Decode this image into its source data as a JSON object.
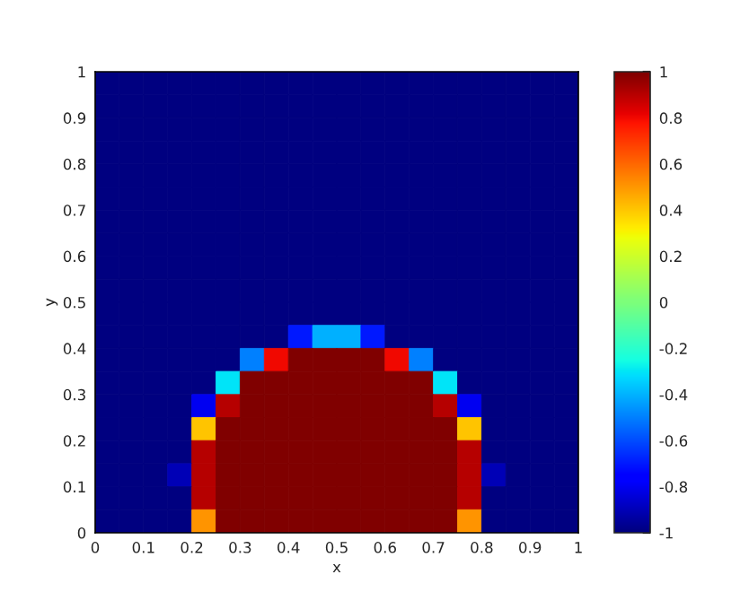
{
  "chart_data": {
    "type": "heatmap",
    "xlabel": "x",
    "ylabel": "y",
    "x": [
      0.025,
      0.075,
      0.125,
      0.175,
      0.225,
      0.275,
      0.325,
      0.375,
      0.425,
      0.475,
      0.525,
      0.575,
      0.625,
      0.675,
      0.725,
      0.775,
      0.825,
      0.875,
      0.925,
      0.975
    ],
    "y": [
      0.975,
      0.925,
      0.875,
      0.825,
      0.775,
      0.725,
      0.675,
      0.625,
      0.575,
      0.525,
      0.475,
      0.425,
      0.375,
      0.325,
      0.275,
      0.225,
      0.175,
      0.125,
      0.075,
      0.025
    ],
    "xlim": [
      0,
      1
    ],
    "xticks": [
      0,
      0.1,
      0.2,
      0.3,
      0.4,
      0.5,
      0.6,
      0.7,
      0.8,
      0.9,
      1
    ],
    "ylim": [
      0,
      1
    ],
    "yticks": [
      0,
      0.1,
      0.2,
      0.3,
      0.4,
      0.5,
      0.6,
      0.7,
      0.8,
      0.9,
      1
    ],
    "clim": [
      -1,
      1
    ],
    "cticks": [
      -1,
      -0.8,
      -0.6,
      -0.4,
      -0.2,
      0,
      0.2,
      0.4,
      0.6,
      0.8,
      1
    ],
    "cells": [
      [
        -1,
        -1,
        -1,
        -1,
        -1,
        -1,
        -1,
        -1,
        -1,
        -1,
        -1,
        -1,
        -1,
        -1,
        -1,
        -1,
        -1,
        -1,
        -1,
        -1
      ],
      [
        -1,
        -1,
        -1,
        -1,
        -1,
        -1,
        -1,
        -1,
        -1,
        -1,
        -1,
        -1,
        -1,
        -1,
        -1,
        -1,
        -1,
        -1,
        -1,
        -1
      ],
      [
        -1,
        -1,
        -1,
        -1,
        -1,
        -1,
        -1,
        -1,
        -1,
        -1,
        -1,
        -1,
        -1,
        -1,
        -1,
        -1,
        -1,
        -1,
        -1,
        -1
      ],
      [
        -1,
        -1,
        -1,
        -1,
        -1,
        -1,
        -1,
        -1,
        -1,
        -1,
        -1,
        -1,
        -1,
        -1,
        -1,
        -1,
        -1,
        -1,
        -1,
        -1
      ],
      [
        -1,
        -1,
        -1,
        -1,
        -1,
        -1,
        -1,
        -1,
        -1,
        -1,
        -1,
        -1,
        -1,
        -1,
        -1,
        -1,
        -1,
        -1,
        -1,
        -1
      ],
      [
        -1,
        -1,
        -1,
        -1,
        -1,
        -1,
        -1,
        -1,
        -1,
        -1,
        -1,
        -1,
        -1,
        -1,
        -1,
        -1,
        -1,
        -1,
        -1,
        -1
      ],
      [
        -1,
        -1,
        -1,
        -1,
        -1,
        -1,
        -1,
        -1,
        -1,
        -1,
        -1,
        -1,
        -1,
        -1,
        -1,
        -1,
        -1,
        -1,
        -1,
        -1
      ],
      [
        -1,
        -1,
        -1,
        -1,
        -1,
        -1,
        -1,
        -1,
        -1,
        -1,
        -1,
        -1,
        -1,
        -1,
        -1,
        -1,
        -1,
        -1,
        -1,
        -1
      ],
      [
        -1,
        -1,
        -1,
        -1,
        -1,
        -1,
        -1,
        -1,
        -1,
        -1,
        -1,
        -1,
        -1,
        -1,
        -1,
        -1,
        -1,
        -1,
        -1,
        -1
      ],
      [
        -1,
        -1,
        -1,
        -1,
        -1,
        -1,
        -1,
        -1,
        -1,
        -1,
        -1,
        -1,
        -1,
        -1,
        -1,
        -1,
        -1,
        -1,
        -1,
        -1
      ],
      [
        -1,
        -1,
        -1,
        -1,
        -1,
        -1,
        -1,
        -1,
        -1,
        -1,
        -1,
        -1,
        -1,
        -1,
        -1,
        -1,
        -1,
        -1,
        -1,
        -1
      ],
      [
        -1,
        -1,
        -1,
        -1,
        -1,
        -1,
        -1,
        -1,
        -0.7,
        -0.4,
        -0.4,
        -0.7,
        -1,
        -1,
        -1,
        -1,
        -1,
        -1,
        -1,
        -1
      ],
      [
        -1,
        -1,
        -1,
        -1,
        -1,
        -1,
        -0.5,
        0.8,
        1,
        1,
        1,
        1,
        0.8,
        -0.5,
        -1,
        -1,
        -1,
        -1,
        -1,
        -1
      ],
      [
        -1,
        -1,
        -1,
        -1,
        -1,
        -0.3,
        1,
        1,
        1,
        1,
        1,
        1,
        1,
        1,
        -0.3,
        -1,
        -1,
        -1,
        -1,
        -1
      ],
      [
        -1,
        -1,
        -1,
        -1,
        -0.8,
        0.9,
        1,
        1,
        1,
        1,
        1,
        1,
        1,
        1,
        0.9,
        -0.8,
        -1,
        -1,
        -1,
        -1
      ],
      [
        -1,
        -1,
        -1,
        -1,
        0.4,
        1,
        1,
        1,
        1,
        1,
        1,
        1,
        1,
        1,
        1,
        0.4,
        -1,
        -1,
        -1,
        -1
      ],
      [
        -1,
        -1,
        -1,
        -1,
        0.9,
        1,
        1,
        1,
        1,
        1,
        1,
        1,
        1,
        1,
        1,
        0.9,
        -1,
        -1,
        -1,
        -1
      ],
      [
        -1,
        -1,
        -1,
        -0.9,
        0.9,
        1,
        1,
        1,
        1,
        1,
        1,
        1,
        1,
        1,
        1,
        0.9,
        -0.9,
        -1,
        -1,
        -1
      ],
      [
        -1,
        -1,
        -1,
        -1,
        0.9,
        1,
        1,
        1,
        1,
        1,
        1,
        1,
        1,
        1,
        1,
        0.9,
        -1,
        -1,
        -1,
        -1
      ],
      [
        -1,
        -1,
        -1,
        -1,
        0.5,
        1,
        1,
        1,
        1,
        1,
        1,
        1,
        1,
        1,
        1,
        0.5,
        -1,
        -1,
        -1,
        -1
      ]
    ]
  }
}
